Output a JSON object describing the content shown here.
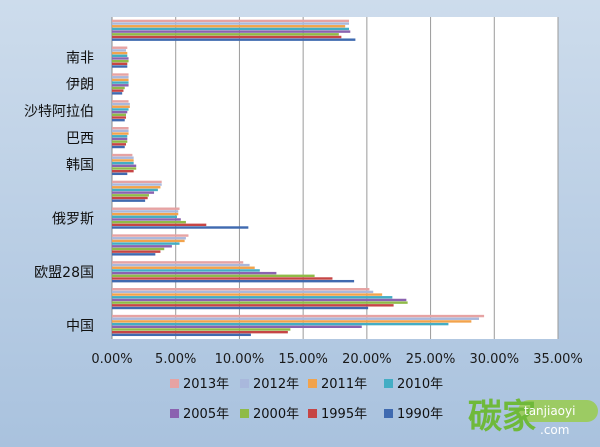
{
  "chart_data": {
    "type": "bar",
    "orientation": "horizontal",
    "title": "",
    "xlabel": "",
    "ylabel": "",
    "xlim": [
      0,
      0.35
    ],
    "x_ticks": [
      "0.00%",
      "5.00%",
      "10.00%",
      "15.00%",
      "20.00%",
      "25.00%",
      "30.00%",
      "35.00%"
    ],
    "grid": "vertical",
    "legend_position": "bottom",
    "categories": [
      "中国",
      "",
      "欧盟28国",
      "",
      "俄罗斯",
      "",
      "韩国",
      "巴西",
      "沙特阿拉伯",
      "伊朗",
      "南非",
      ""
    ],
    "series": [
      {
        "name": "2013年",
        "color": "#e6a3a3",
        "values": [
          0.292,
          0.202,
          0.103,
          0.06,
          0.053,
          0.039,
          0.016,
          0.013,
          0.013,
          0.013,
          0.012,
          0.186
        ]
      },
      {
        "name": "2012年",
        "color": "#a9b8dc",
        "values": [
          0.288,
          0.205,
          0.108,
          0.058,
          0.052,
          0.039,
          0.017,
          0.013,
          0.014,
          0.013,
          0.011,
          0.186
        ]
      },
      {
        "name": "2011年",
        "color": "#f2a34c",
        "values": [
          0.282,
          0.212,
          0.112,
          0.057,
          0.052,
          0.038,
          0.017,
          0.013,
          0.014,
          0.013,
          0.012,
          0.183
        ]
      },
      {
        "name": "2010年",
        "color": "#43adc4",
        "values": [
          0.264,
          0.22,
          0.116,
          0.053,
          0.051,
          0.036,
          0.017,
          0.012,
          0.013,
          0.013,
          0.012,
          0.186
        ]
      },
      {
        "name": "2005年",
        "color": "#8b62b0",
        "values": [
          0.196,
          0.231,
          0.129,
          0.047,
          0.054,
          0.033,
          0.019,
          0.012,
          0.012,
          0.013,
          0.013,
          0.187
        ]
      },
      {
        "name": "2000年",
        "color": "#8fbb48",
        "values": [
          0.14,
          0.232,
          0.159,
          0.041,
          0.058,
          0.029,
          0.019,
          0.012,
          0.011,
          0.01,
          0.013,
          0.178
        ]
      },
      {
        "name": "1995年",
        "color": "#c64545",
        "values": [
          0.138,
          0.221,
          0.173,
          0.038,
          0.074,
          0.028,
          0.017,
          0.011,
          0.011,
          0.009,
          0.012,
          0.18
        ]
      },
      {
        "name": "1990年",
        "color": "#3f6ab0",
        "values": [
          0.109,
          0.201,
          0.19,
          0.034,
          0.107,
          0.026,
          0.012,
          0.01,
          0.01,
          0.008,
          0.012,
          0.191
        ]
      }
    ]
  },
  "watermark": {
    "main": "碳家",
    "sub": "tanjiaoyi",
    "com": ".com"
  }
}
